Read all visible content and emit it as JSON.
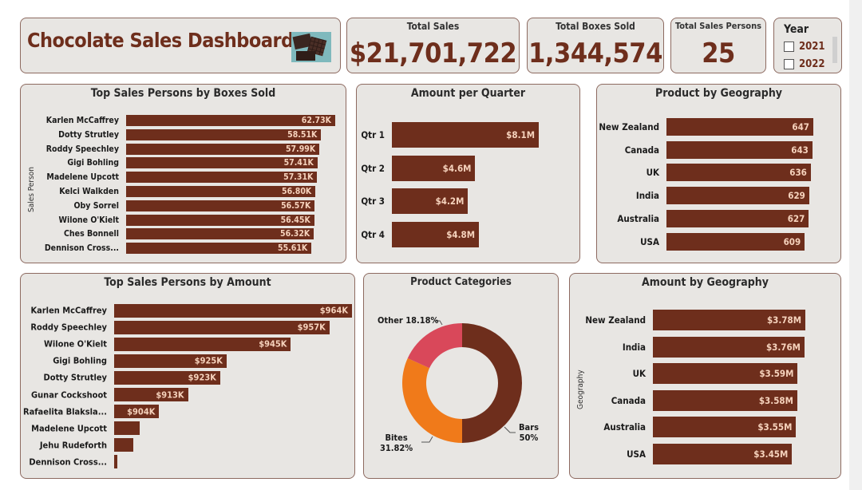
{
  "header": {
    "title": "Chocolate Sales Dashboard",
    "image_icon": "chocolate-bars-image"
  },
  "kpis": {
    "total_sales": {
      "label": "Total Sales",
      "value": "$21,701,722"
    },
    "total_boxes": {
      "label": "Total Boxes Sold",
      "value": "1,344,574"
    },
    "total_persons": {
      "label": "Total Sales Persons",
      "value": "25"
    }
  },
  "year_slicer": {
    "title": "Year",
    "options": [
      {
        "label": "2021",
        "checked": false
      },
      {
        "label": "2022",
        "checked": false
      }
    ]
  },
  "colors": {
    "bar": "#6e2e1c",
    "bars": "#6e2e1c",
    "bites": "#f07a1a",
    "other": "#d9485a",
    "panel": "#e8e6e3"
  },
  "chart_data": [
    {
      "id": "boxes",
      "type": "bar",
      "title": "Top Sales Persons by Boxes Sold",
      "ylabel": "Sales Person",
      "categories": [
        "Karlen McCaffrey",
        "Dotty Strutley",
        "Roddy Speechley",
        "Gigi Bohling",
        "Madelene Upcott",
        "Kelci Walkden",
        "Oby Sorrel",
        "Wilone O'Kielt",
        "Ches Bonnell",
        "Dennison Cross..."
      ],
      "values": [
        62.73,
        58.51,
        57.99,
        57.41,
        57.31,
        56.8,
        56.57,
        56.45,
        56.32,
        55.61
      ],
      "labels": [
        "62.73K",
        "58.51K",
        "57.99K",
        "57.41K",
        "57.31K",
        "56.80K",
        "56.57K",
        "56.45K",
        "56.32K",
        "55.61K"
      ],
      "xlim": [
        0,
        62.73
      ]
    },
    {
      "id": "quarter",
      "type": "bar",
      "title": "Amount per Quarter",
      "categories": [
        "Qtr 1",
        "Qtr 2",
        "Qtr 3",
        "Qtr 4"
      ],
      "values": [
        8.1,
        4.6,
        4.2,
        4.8
      ],
      "labels": [
        "$8.1M",
        "$4.6M",
        "$4.2M",
        "$4.8M"
      ],
      "xlim": [
        0,
        8.1
      ]
    },
    {
      "id": "prodgeo",
      "type": "bar",
      "title": "Product by Geography",
      "categories": [
        "New Zealand",
        "Canada",
        "UK",
        "India",
        "Australia",
        "USA"
      ],
      "values": [
        647,
        643,
        636,
        629,
        627,
        609
      ],
      "labels": [
        "647",
        "643",
        "636",
        "629",
        "627",
        "609"
      ],
      "xlim": [
        0,
        647
      ]
    },
    {
      "id": "amount",
      "type": "bar",
      "title": "Top Sales Persons by Amount",
      "categories": [
        "Karlen McCaffrey",
        "Roddy Speechley",
        "Wilone O'Kielt",
        "Gigi Bohling",
        "Dotty Strutley",
        "Gunar Cockshoot",
        "Rafaelita Blaksla...",
        "Madelene Upcott",
        "Jehu Rudeforth",
        "Dennison Cross..."
      ],
      "values": [
        964,
        957,
        945,
        925,
        923,
        913,
        904,
        898,
        896,
        891
      ],
      "labels": [
        "$964K",
        "$957K",
        "$945K",
        "$925K",
        "$923K",
        "$913K",
        "$904K",
        "",
        "",
        ""
      ],
      "xlim": [
        890,
        964
      ]
    },
    {
      "id": "categories",
      "type": "pie",
      "title": "Product Categories",
      "categories": [
        "Bars",
        "Bites",
        "Other"
      ],
      "values": [
        50,
        31.82,
        18.18
      ],
      "labels": [
        "Bars 50%",
        "Bites 31.82%",
        "Other 18.18%"
      ]
    },
    {
      "id": "amtgeo",
      "type": "bar",
      "title": "Amount by Geography",
      "ylabel": "Geography",
      "categories": [
        "New Zealand",
        "India",
        "UK",
        "Canada",
        "Australia",
        "USA"
      ],
      "values": [
        3.78,
        3.76,
        3.59,
        3.58,
        3.55,
        3.45
      ],
      "labels": [
        "$3.78M",
        "$3.76M",
        "$3.59M",
        "$3.58M",
        "$3.55M",
        "$3.45M"
      ],
      "xlim": [
        0,
        3.78
      ]
    }
  ]
}
